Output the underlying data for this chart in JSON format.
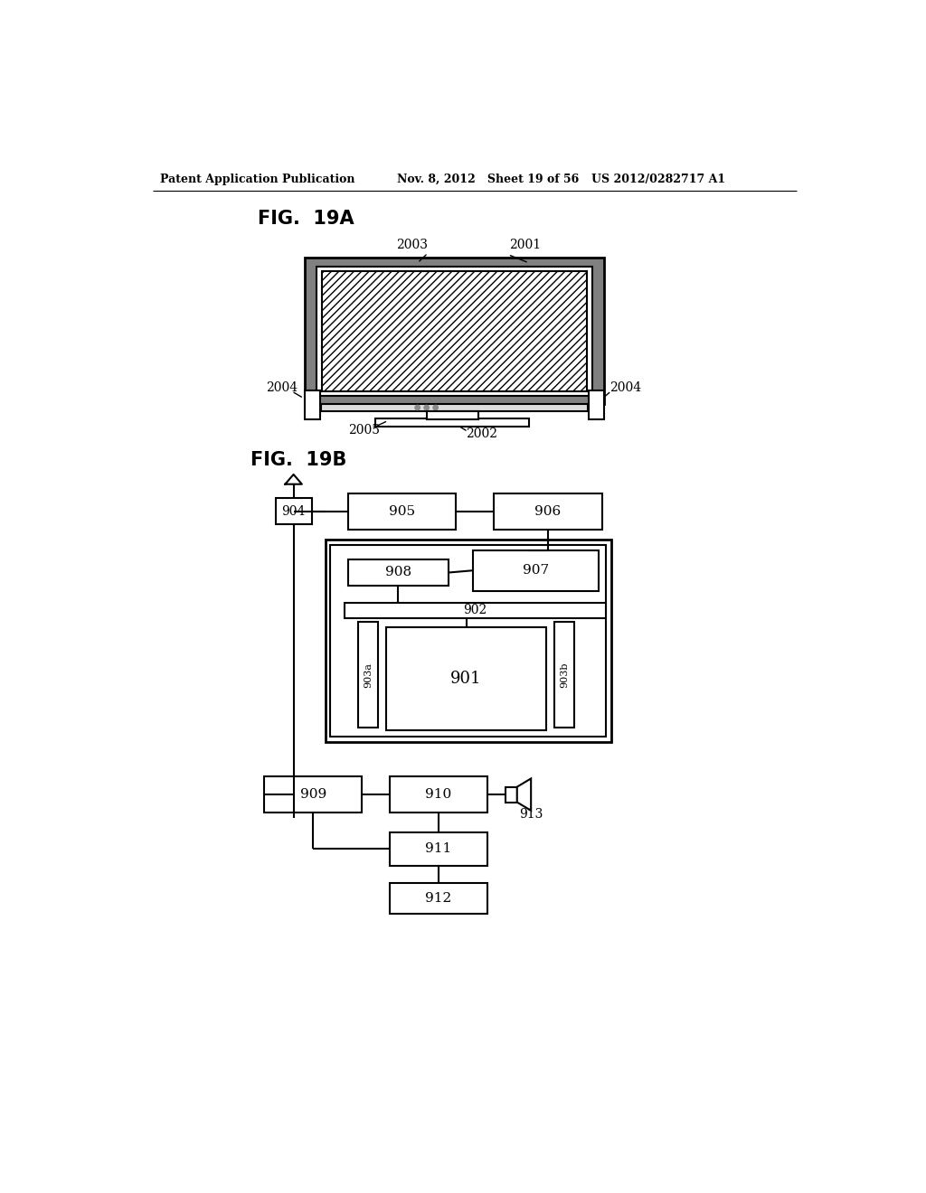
{
  "header_left": "Patent Application Publication",
  "header_mid": "Nov. 8, 2012   Sheet 19 of 56",
  "header_right": "US 2012/0282717 A1",
  "fig19a_label": "FIG.  19A",
  "fig19b_label": "FIG.  19B",
  "bg_color": "#ffffff",
  "line_color": "#000000"
}
